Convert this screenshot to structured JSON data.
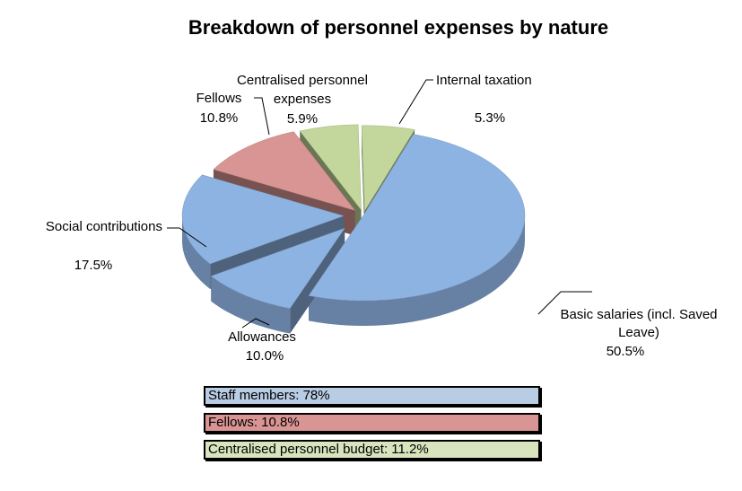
{
  "chart_data": {
    "type": "pie",
    "title": "Breakdown of personnel expenses by nature",
    "slices": [
      {
        "label": "Basic salaries (incl. Saved Leave)",
        "value": 50.5,
        "value_label": "50.5%",
        "color": "#8DB3E2"
      },
      {
        "label": "Allowances",
        "value": 10.0,
        "value_label": "10.0%",
        "color": "#8DB3E2"
      },
      {
        "label": "Social contributions",
        "value": 17.5,
        "value_label": "17.5%",
        "color": "#8DB3E2"
      },
      {
        "label": "Fellows",
        "value": 10.8,
        "value_label": "10.8%",
        "color": "#D99594"
      },
      {
        "label": "Centralised personnel expenses",
        "value": 5.9,
        "value_label": "5.9%",
        "color": "#C3D69B"
      },
      {
        "label": "Internal taxation",
        "value": 5.3,
        "value_label": "5.3%",
        "color": "#C3D69B"
      }
    ],
    "legend": [
      {
        "text": "Staff members: 78%",
        "color": "#B8CCE4"
      },
      {
        "text": "Fellows: 10.8%",
        "color": "#D99594"
      },
      {
        "text": "Centralised personnel budget: 11.2%",
        "color": "#D7E4BD"
      }
    ]
  }
}
